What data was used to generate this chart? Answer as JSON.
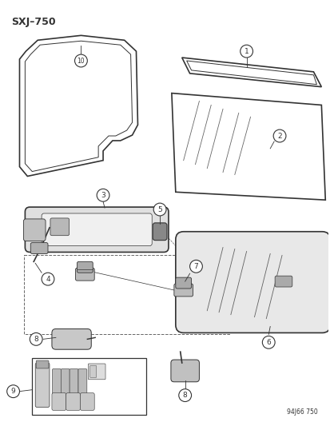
{
  "title": "SXJ–750",
  "footer": "94J66 750",
  "background": "#ffffff",
  "line_color": "#333333",
  "title_font_size": 9
}
